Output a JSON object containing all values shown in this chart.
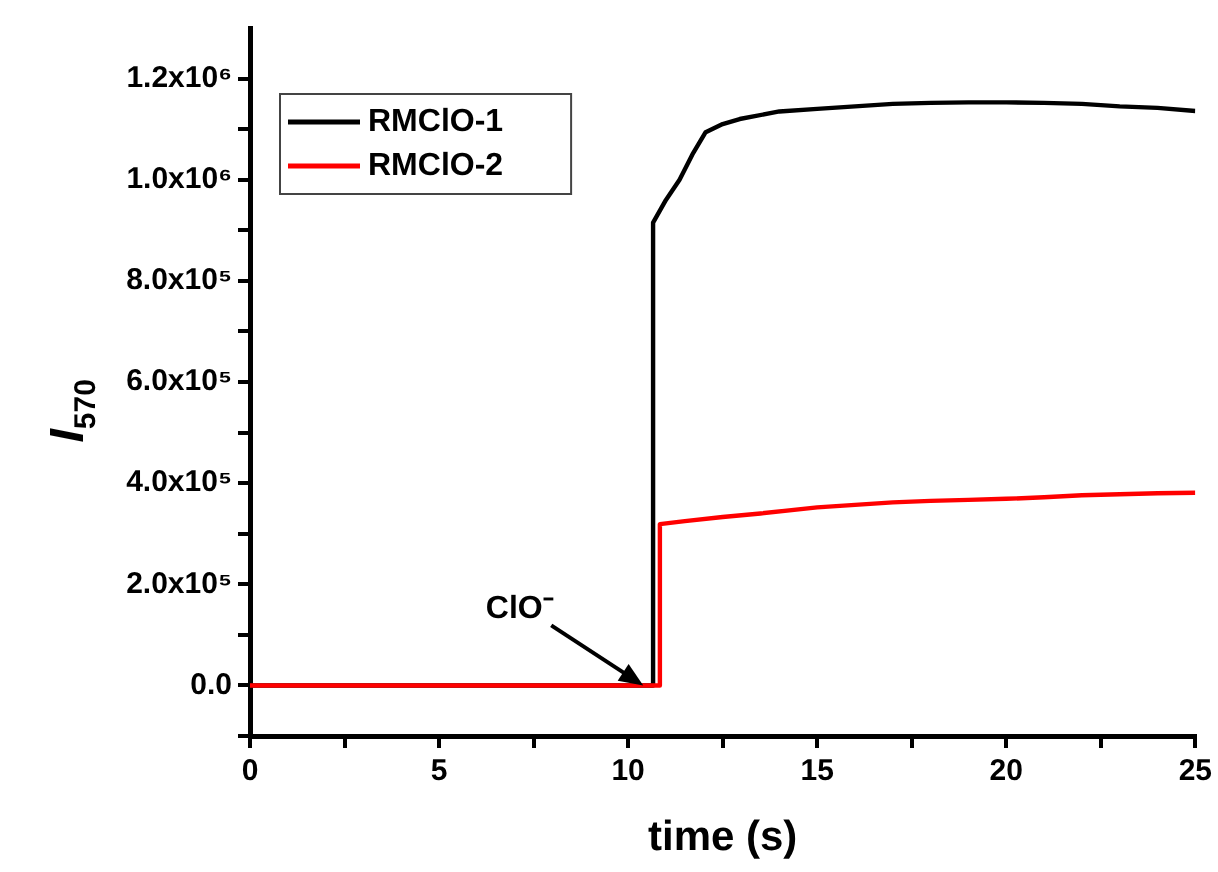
{
  "chart_data": {
    "type": "line",
    "xlabel": "time (s)",
    "ylabel": "I$_{570}$",
    "xlim": [
      0,
      25
    ],
    "xticks": [
      0,
      {
        "value": 2.5,
        "label": null
      },
      5,
      {
        "value": 7.5,
        "label": null
      },
      10,
      {
        "value": 12.5,
        "label": null
      },
      15,
      {
        "value": 17.5,
        "label": null
      },
      20,
      {
        "value": 22.5,
        "label": null
      },
      25
    ],
    "ylim": [
      -100000,
      1300000
    ],
    "yticks": [
      {
        "value": -100000,
        "label": null
      },
      {
        "value": 0,
        "label": "0.0"
      },
      {
        "value": 100000,
        "label": null
      },
      {
        "value": 200000,
        "label": "2.0x10⁵"
      },
      {
        "value": 300000,
        "label": null
      },
      {
        "value": 400000,
        "label": "4.0x10⁵"
      },
      {
        "value": 500000,
        "label": null
      },
      {
        "value": 600000,
        "label": "6.0x10⁵"
      },
      {
        "value": 700000,
        "label": null
      },
      {
        "value": 800000,
        "label": "8.0x10⁵"
      },
      {
        "value": 900000,
        "label": null
      },
      {
        "value": 1000000,
        "label": "1.0x10⁶"
      },
      {
        "value": 1100000,
        "label": null
      },
      {
        "value": 1200000,
        "label": "1.2x10⁶"
      }
    ],
    "grid": false,
    "legend": "top left",
    "marker": "none",
    "line_style": "solid",
    "annotations": [
      {
        "text": "ClO⁻",
        "x": 10.4,
        "y": 0
      }
    ],
    "series": [
      {
        "name": "RMClO-1",
        "color": "#000000",
        "x": [
          0,
          10.66,
          10.66,
          11.0,
          11.36,
          11.7,
          12.05,
          12.5,
          12.95,
          14,
          15,
          16,
          17,
          18,
          19,
          20,
          21,
          22,
          23,
          24,
          25
        ],
        "values": [
          0,
          0,
          915000,
          960000,
          1000000,
          1050000,
          1094000,
          1110000,
          1120000,
          1135000,
          1140000,
          1145000,
          1150000,
          1152000,
          1153000,
          1153000,
          1152000,
          1150000,
          1145000,
          1142000,
          1136000
        ]
      },
      {
        "name": "RMClO-2",
        "color": "#ff0000",
        "x": [
          0,
          10.84,
          10.84,
          11.5,
          12.5,
          13.5,
          15,
          16,
          17,
          18,
          19,
          20,
          21,
          22,
          23,
          24,
          25
        ],
        "values": [
          0,
          0,
          319000,
          325000,
          333000,
          340000,
          352000,
          357000,
          362000,
          365000,
          367000,
          369000,
          372000,
          376000,
          378000,
          380000,
          381000
        ]
      }
    ]
  }
}
